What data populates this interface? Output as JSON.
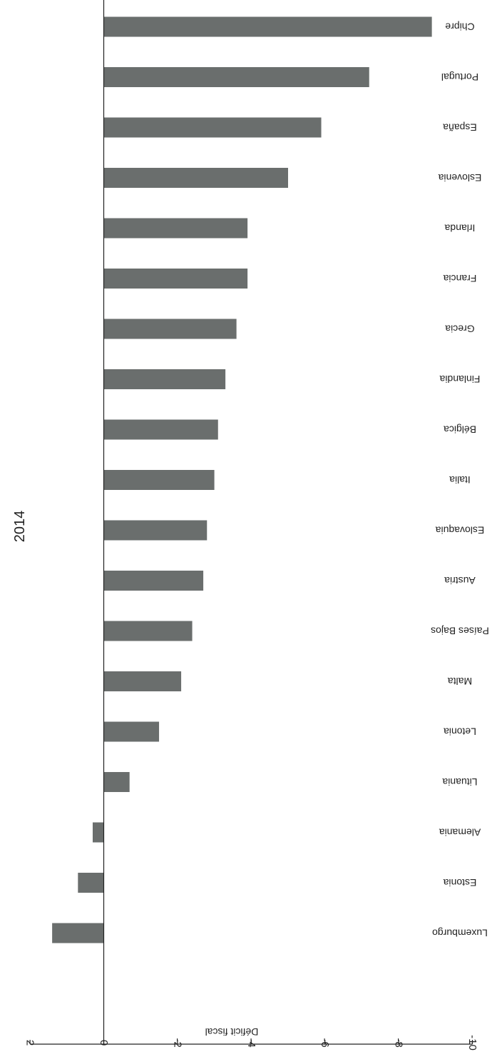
{
  "chart_data": {
    "type": "bar",
    "orientation": "horizontal",
    "title": "2014",
    "xlabel": "Déficit fiscal",
    "ylabel": "",
    "xlim": [
      2,
      -10
    ],
    "ticks": [
      2,
      0,
      -2,
      -4,
      -6,
      -8,
      -10
    ],
    "tick_labels": [
      "2",
      "0",
      "-2",
      "-4",
      "-6",
      "-8",
      "-10"
    ],
    "categories": [
      "Chipre",
      "Portugal",
      "España",
      "Eslovenia",
      "Irlanda",
      "Francia",
      "Grecia",
      "Finlandia",
      "Bélgica",
      "Italia",
      "Eslovaquia",
      "Austria",
      "Países Bajos",
      "Malta",
      "Letonia",
      "Lituania",
      "Alemania",
      "Estonia",
      "Luxemburgo"
    ],
    "values": [
      -8.9,
      -7.2,
      -5.9,
      -5.0,
      -3.9,
      -3.9,
      -3.6,
      -3.3,
      -3.1,
      -3.0,
      -2.8,
      -2.7,
      -2.4,
      -2.1,
      -1.5,
      -0.7,
      0.3,
      0.7,
      1.4
    ],
    "bar_color": "#6a6e6d",
    "axis_color": "#222222",
    "grid": false,
    "rotated": "180deg"
  }
}
